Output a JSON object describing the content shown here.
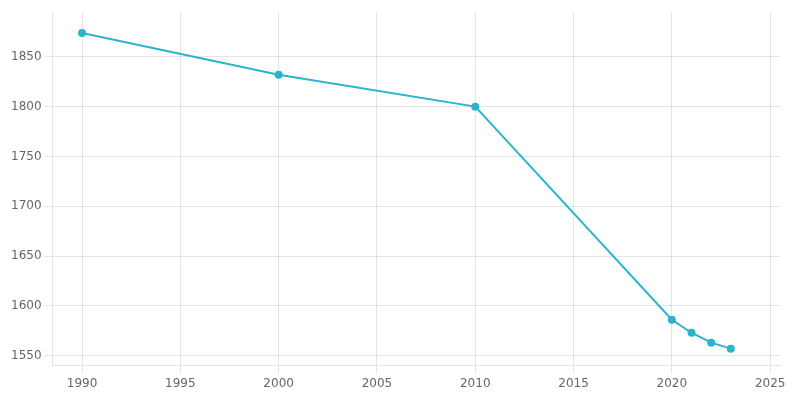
{
  "chart_data": {
    "type": "line",
    "x": [
      1990,
      2000,
      2010,
      2020,
      2021,
      2022,
      2023
    ],
    "values": [
      1874,
      1832,
      1800,
      1586,
      1573,
      1563,
      1557
    ],
    "color": "#2ab5c8",
    "marker": "o",
    "xlim": [
      1988.5,
      2025.5
    ],
    "ylim": [
      1540,
      1895
    ],
    "xticks": [
      1990,
      1995,
      2000,
      2005,
      2010,
      2015,
      2020,
      2025
    ],
    "yticks": [
      1550,
      1600,
      1650,
      1700,
      1750,
      1800,
      1850
    ],
    "grid": true
  }
}
